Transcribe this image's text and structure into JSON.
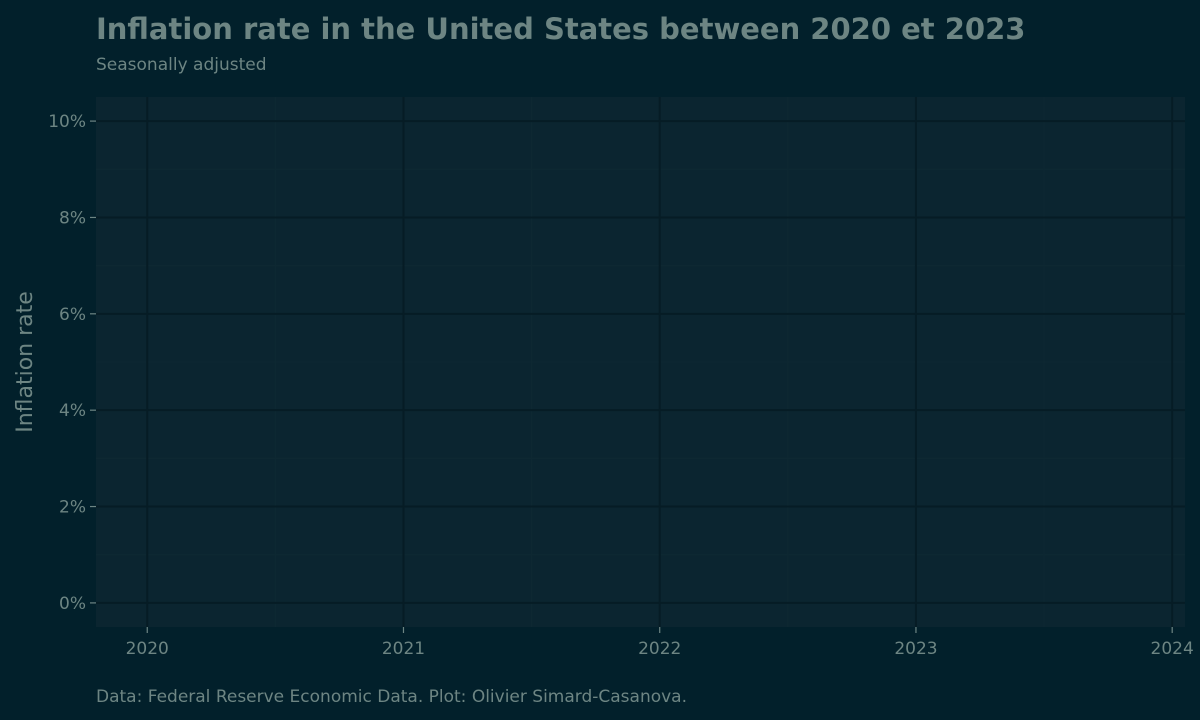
{
  "chart_data": {
    "type": "line",
    "title": "Inflation rate in the United States between 2020 et 2023",
    "subtitle": "Seasonally adjusted",
    "caption": "Data: Federal Reserve Economic Data. Plot: Olivier Simard-Casanova.",
    "xlabel": "",
    "ylabel": "Inflation rate",
    "x_ticks": [
      "2020",
      "2021",
      "2022",
      "2023",
      "2024"
    ],
    "x_tick_values": [
      2020,
      2021,
      2022,
      2023,
      2024
    ],
    "y_ticks": [
      "0%",
      "2%",
      "4%",
      "6%",
      "8%",
      "10%"
    ],
    "y_tick_values": [
      0,
      2,
      4,
      6,
      8,
      10
    ],
    "xlim": [
      2019.8,
      2024.05
    ],
    "ylim": [
      -0.5,
      10.5
    ],
    "grid": true,
    "series": []
  },
  "colors": {
    "background": "#02202b",
    "panel": "#0b2530",
    "grid_major": "#061c25",
    "grid_minor": "#0e2832",
    "text": "#6d8583",
    "tick": "#6d8583"
  }
}
